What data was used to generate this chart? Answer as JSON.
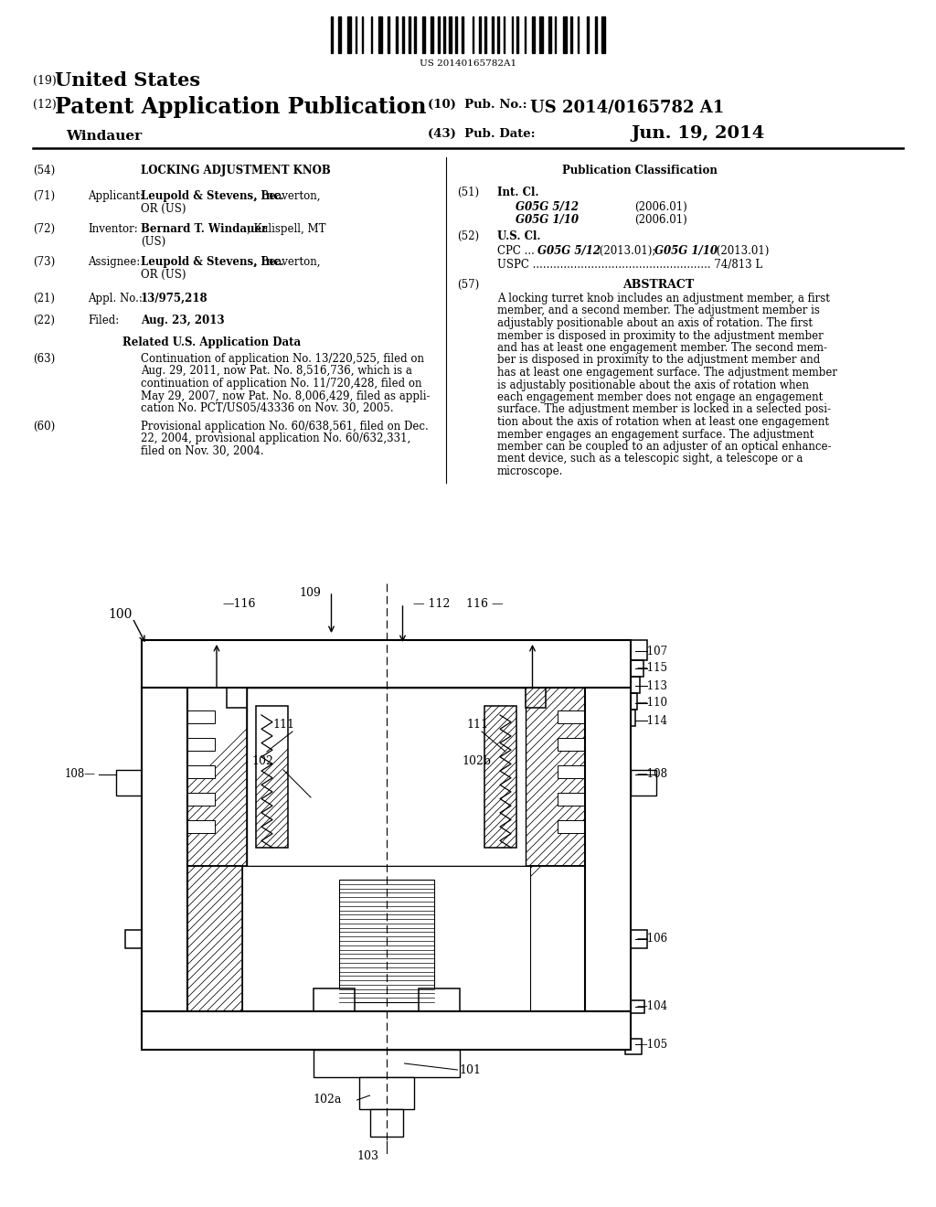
{
  "barcode_text": "US 20140165782A1",
  "bg_color": "#ffffff",
  "text_color": "#000000",
  "abstract_text": "A locking turret knob includes an adjustment member, a first member, and a second member. The adjustment member is adjustably positionable about an axis of rotation. The first member is disposed in proximity to the adjustment member and has at least one engagement member. The second mem-ber is disposed in proximity to the adjustment member and has at least one engagement surface. The adjustment member is adjustably positionable about the axis of rotation when each engagement member does not engage an engagement surface. The adjustment member is locked in a selected posi-tion about the axis of rotation when at least one engagement member engages an engagement surface. The adjustment member can be coupled to an adjuster of an optical enhance-ment device, such as a telescopic sight, a telescope or a microscope."
}
